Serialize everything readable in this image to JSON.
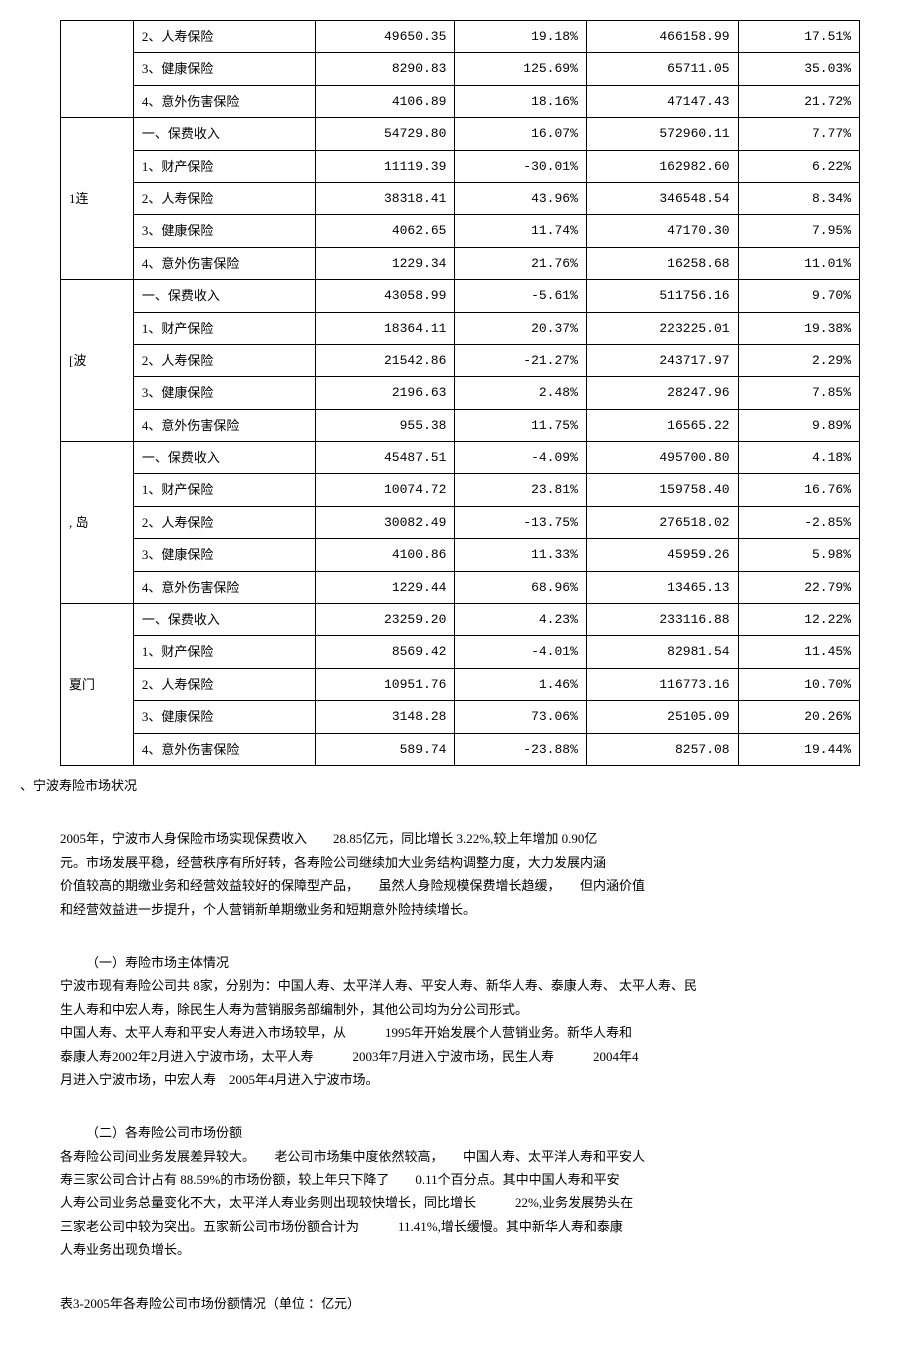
{
  "table": {
    "groups": [
      {
        "city": "",
        "rows": [
          [
            "2、人寿保险",
            "49650.35",
            "19.18%",
            "466158.99",
            "17.51%"
          ],
          [
            "3、健康保险",
            "8290.83",
            "125.69%",
            "65711.05",
            "35.03%"
          ],
          [
            "4、意外伤害保险",
            "4106.89",
            "18.16%",
            "47147.43",
            "21.72%"
          ]
        ]
      },
      {
        "city": "1连",
        "rows": [
          [
            "一、保费收入",
            "54729.80",
            "16.07%",
            "572960.11",
            "7.77%"
          ],
          [
            "1、财产保险",
            "11119.39",
            "-30.01%",
            "162982.60",
            "6.22%"
          ],
          [
            "2、人寿保险",
            "38318.41",
            "43.96%",
            "346548.54",
            "8.34%"
          ],
          [
            "3、健康保险",
            "4062.65",
            "11.74%",
            "47170.30",
            "7.95%"
          ],
          [
            "4、意外伤害保险",
            "1229.34",
            "21.76%",
            "16258.68",
            "11.01%"
          ]
        ]
      },
      {
        "city": "[波",
        "rows": [
          [
            "一、保费收入",
            "43058.99",
            "-5.61%",
            "511756.16",
            "9.70%"
          ],
          [
            "1、财产保险",
            "18364.11",
            "20.37%",
            "223225.01",
            "19.38%"
          ],
          [
            "2、人寿保险",
            "21542.86",
            "-21.27%",
            "243717.97",
            "2.29%"
          ],
          [
            "3、健康保险",
            "2196.63",
            "2.48%",
            "28247.96",
            "7.85%"
          ],
          [
            "4、意外伤害保险",
            "955.38",
            "11.75%",
            "16565.22",
            "9.89%"
          ]
        ]
      },
      {
        "city": ", 岛",
        "rows": [
          [
            "一、保费收入",
            "45487.51",
            "-4.09%",
            "495700.80",
            "4.18%"
          ],
          [
            "1、财产保险",
            "10074.72",
            "23.81%",
            "159758.40",
            "16.76%"
          ],
          [
            "2、人寿保险",
            "30082.49",
            "-13.75%",
            "276518.02",
            "-2.85%"
          ],
          [
            "3、健康保险",
            "4100.86",
            "11.33%",
            "45959.26",
            "5.98%"
          ],
          [
            "4、意外伤害保险",
            "1229.44",
            "68.96%",
            "13465.13",
            "22.79%"
          ]
        ]
      },
      {
        "city": "夏门",
        "rows": [
          [
            "一、保费收入",
            "23259.20",
            "4.23%",
            "233116.88",
            "12.22%"
          ],
          [
            "1、财产保险",
            "8569.42",
            "-4.01%",
            "82981.54",
            "11.45%"
          ],
          [
            "2、人寿保险",
            "10951.76",
            "1.46%",
            "116773.16",
            "10.70%"
          ],
          [
            "3、健康保险",
            "3148.28",
            "73.06%",
            "25105.09",
            "20.26%"
          ],
          [
            "4、意外伤害保险",
            "589.74",
            "-23.88%",
            "8257.08",
            "19.44%"
          ]
        ]
      }
    ]
  },
  "section_label": "、宁波寿险市场状况",
  "para1": {
    "l1": "2005年，宁波市人身保险市场实现保费收入　　28.85亿元，同比增长 3.22%,较上年增加 0.90亿",
    "l2": "元。市场发展平稳，经营秩序有所好转，各寿险公司继续加大业务结构调整力度，大力发展内涵",
    "l3": "价值较高的期缴业务和经营效益较好的保障型产品，　　虽然人身险规模保费增长趋缓，　　但内涵价值",
    "l4": "和经营效益进一步提升，个人营销新单期缴业务和短期意外险持续增长。"
  },
  "para2": {
    "h": "（一）寿险市场主体情况",
    "l1": "宁波市现有寿险公司共 8家，分别为：中国人寿、太平洋人寿、平安人寿、新华人寿、泰康人寿、 太平人寿、民",
    "l2": "生人寿和中宏人寿，除民生人寿为营销服务部编制外，其他公司均为分公司形式。",
    "l3": "中国人寿、太平人寿和平安人寿进入市场较早，从　　　1995年开始发展个人营销业务。新华人寿和",
    "l4": "泰康人寿2002年2月进入宁波市场，太平人寿　　　2003年7月进入宁波市场，民生人寿　　　2004年4",
    "l5": "月进入宁波市场，中宏人寿　2005年4月进入宁波市场。"
  },
  "para3": {
    "h": "（二）各寿险公司市场份额",
    "l1": "各寿险公司间业务发展差异较大。　　老公司市场集中度依然较高，　　中国人寿、太平洋人寿和平安人",
    "l2": "寿三家公司合计占有 88.59%的市场份额，较上年只下降了　　0.11个百分点。其中中国人寿和平安",
    "l3": "人寿公司业务总量变化不大，太平洋人寿业务则出现较快增长，同比增长　　　22%,业务发展势头在",
    "l4": "三家老公司中较为突出。五家新公司市场份额合计为　　　11.41%,增长缓慢。其中新华人寿和泰康",
    "l5": "人寿业务出现负增长。"
  },
  "caption": "表3-2005年各寿险公司市场份额情况（单位 ：亿元）"
}
